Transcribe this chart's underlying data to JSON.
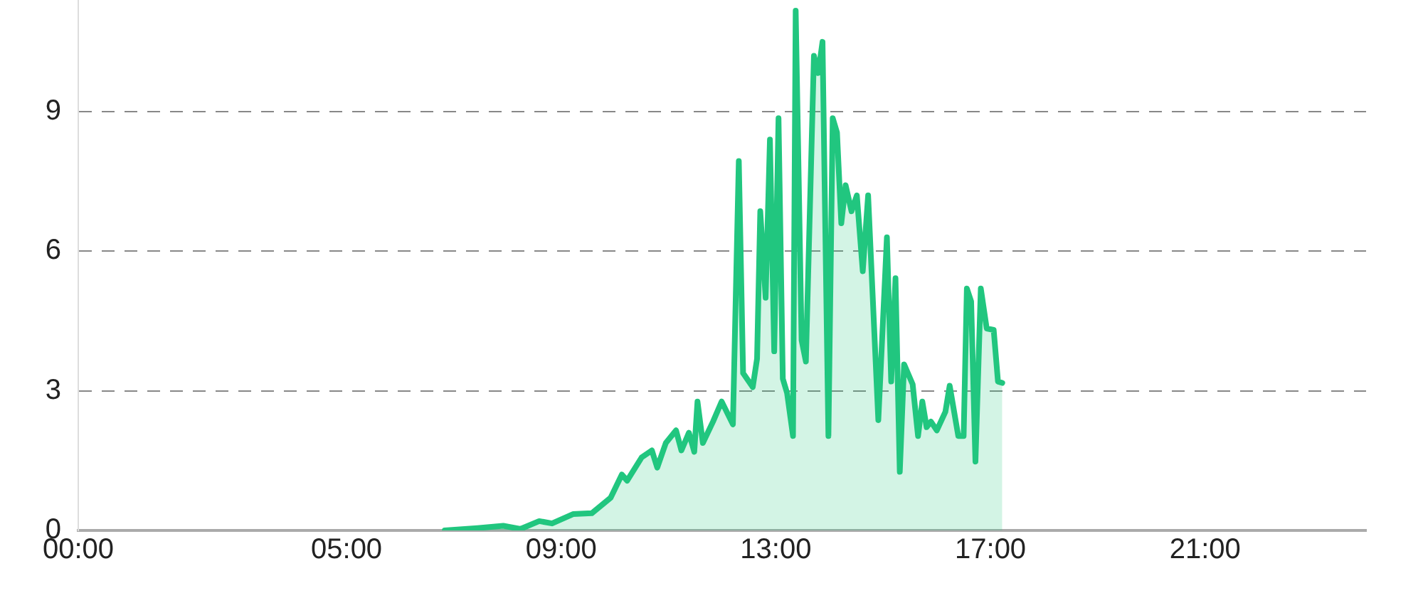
{
  "chart_data": {
    "type": "area",
    "x": [
      6.83,
      7.44,
      7.92,
      8.24,
      8.59,
      8.83,
      9.22,
      9.57,
      9.92,
      10.13,
      10.23,
      10.5,
      10.69,
      10.79,
      10.95,
      11.14,
      11.24,
      11.38,
      11.48,
      11.54,
      11.64,
      11.83,
      11.99,
      12.2,
      12.31,
      12.39,
      12.57,
      12.65,
      12.71,
      12.81,
      12.89,
      12.97,
      13.05,
      13.13,
      13.21,
      13.32,
      13.37,
      13.48,
      13.56,
      13.71,
      13.79,
      13.87,
      13.98,
      14.06,
      14.14,
      14.22,
      14.3,
      14.41,
      14.51,
      14.62,
      14.72,
      14.91,
      15.07,
      15.15,
      15.23,
      15.31,
      15.39,
      15.55,
      15.65,
      15.73,
      15.81,
      15.89,
      16.0,
      16.16,
      16.24,
      16.4,
      16.5,
      16.56,
      16.64,
      16.72,
      16.82,
      16.93,
      17.06,
      17.14,
      17.22
    ],
    "series": [
      {
        "color": "#21c67f",
        "values": [
          0,
          0.05,
          0.1,
          0.03,
          0.2,
          0.15,
          0.35,
          0.37,
          0.7,
          1.2,
          1.07,
          1.57,
          1.72,
          1.35,
          1.88,
          2.15,
          1.72,
          2.1,
          1.69,
          2.77,
          1.88,
          2.34,
          2.77,
          2.28,
          7.94,
          3.38,
          3.08,
          3.69,
          6.86,
          5.0,
          8.4,
          3.85,
          8.86,
          3.26,
          2.95,
          2.03,
          11.17,
          4.09,
          3.63,
          10.2,
          9.83,
          10.5,
          2.03,
          8.86,
          8.55,
          6.6,
          7.42,
          6.86,
          7.2,
          5.57,
          7.2,
          2.37,
          6.3,
          3.2,
          5.42,
          1.26,
          3.57,
          3.14,
          2.03,
          2.77,
          2.22,
          2.34,
          2.15,
          2.55,
          3.11,
          2.03,
          2.03,
          5.2,
          4.92,
          1.48,
          5.2,
          4.34,
          4.31,
          3.2,
          3.17
        ]
      }
    ],
    "xlim": [
      0,
      24
    ],
    "xticks": [
      {
        "value": 0,
        "label": "00:00"
      },
      {
        "value": 5,
        "label": "05:00"
      },
      {
        "value": 9,
        "label": "09:00"
      },
      {
        "value": 13,
        "label": "13:00"
      },
      {
        "value": 17,
        "label": "17:00"
      },
      {
        "value": 21,
        "label": "21:00"
      }
    ],
    "ylim": [
      0,
      11.4
    ],
    "yticks": [
      0,
      3,
      6,
      9
    ],
    "grid": "y",
    "legend": false,
    "marker": "none",
    "line_style": "solid"
  }
}
